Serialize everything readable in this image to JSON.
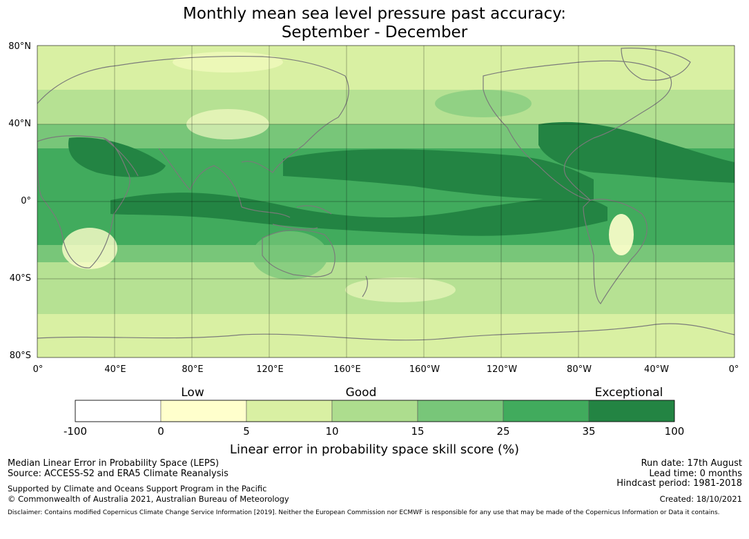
{
  "title": {
    "line1": "Monthly mean sea level pressure past accuracy:",
    "line2": "September - December"
  },
  "map": {
    "lat_labels": [
      "80°N",
      "40°N",
      "0°",
      "40°S",
      "80°S"
    ],
    "lon_labels": [
      "0°",
      "40°E",
      "80°E",
      "120°E",
      "160°E",
      "160°W",
      "120°W",
      "80°W",
      "40°W",
      "0°"
    ]
  },
  "legend": {
    "category_labels": [
      "Low",
      "Good",
      "Exceptional"
    ],
    "tick_labels": [
      "-100",
      "0",
      "5",
      "10",
      "15",
      "25",
      "35",
      "100"
    ],
    "colors": [
      "#ffffff",
      "#ffffcc",
      "#d9f0a3",
      "#addd8e",
      "#78c679",
      "#41ab5d",
      "#238443"
    ],
    "axis_label": "Linear error in probability space skill score (%)"
  },
  "footer": {
    "left_line1": "Median Linear Error in Probability Space (LEPS)",
    "left_line2": "Source: ACCESS-S2 and ERA5 Climate Reanalysis",
    "left_line3": "Supported by Climate and Oceans Support Program in the Pacific",
    "left_line4": "© Commonwealth of Australia 2021, Australian Bureau of Meteorology",
    "right_line1": "Run date: 17th August",
    "right_line2": "Lead time: 0 months",
    "right_line3": "Hindcast period: 1981-2018",
    "right_line4": "Created: 18/10/2021",
    "disclaimer": "Disclaimer: Contains modified Copernicus Climate Change Service Information [2019]. Neither the European Commission nor ECMWF is responsible for any use that may be made of the Copernicus Information or Data it contains."
  }
}
